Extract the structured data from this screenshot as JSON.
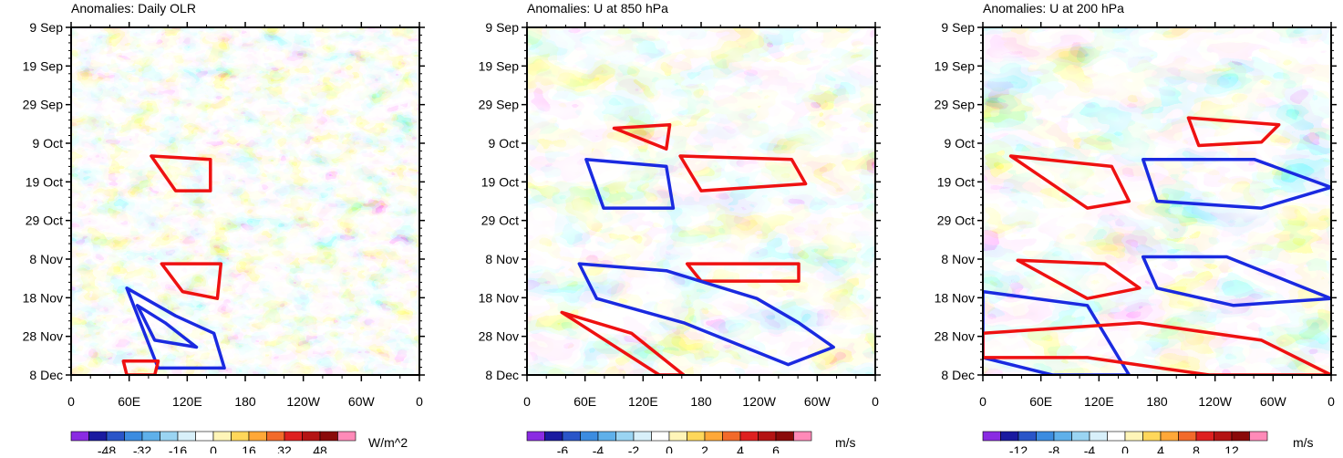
{
  "chart_data": [
    {
      "type": "heatmap",
      "subtype": "hovmoller-contour",
      "title": "Anomalies: Daily OLR",
      "y_ticks": [
        "9 Sep",
        "19 Sep",
        "29 Sep",
        "9 Oct",
        "19 Oct",
        "29 Oct",
        "8 Nov",
        "18 Nov",
        "28 Nov",
        "8 Dec"
      ],
      "x_ticks": [
        "0",
        "60E",
        "120E",
        "180",
        "120W",
        "60W",
        "0"
      ],
      "x_range_deg": [
        0,
        360
      ],
      "colorbar_labels": [
        "-48",
        "-32",
        "-16",
        "0",
        "16",
        "32",
        "48"
      ],
      "units": "W/m^2",
      "contours": [
        {
          "color": "red",
          "x": [
            0.23,
            0.4,
            0.4,
            0.3,
            0.23
          ],
          "y": [
            0.37,
            0.38,
            0.47,
            0.47,
            0.37
          ]
        },
        {
          "color": "red",
          "x": [
            0.26,
            0.43,
            0.42,
            0.32,
            0.26
          ],
          "y": [
            0.68,
            0.68,
            0.78,
            0.76,
            0.68
          ]
        },
        {
          "color": "blue",
          "x": [
            0.16,
            0.3,
            0.41,
            0.44,
            0.25,
            0.16
          ],
          "y": [
            0.75,
            0.83,
            0.88,
            0.98,
            0.98,
            0.75
          ]
        },
        {
          "color": "blue",
          "x": [
            0.19,
            0.27,
            0.36,
            0.24,
            0.19
          ],
          "y": [
            0.8,
            0.85,
            0.92,
            0.9,
            0.8
          ]
        },
        {
          "color": "red",
          "x": [
            0.15,
            0.25,
            0.24,
            0.16
          ],
          "y": [
            0.96,
            0.96,
            1.0,
            1.0
          ]
        }
      ]
    },
    {
      "type": "heatmap",
      "subtype": "hovmoller-contour",
      "title": "Anomalies: U at 850 hPa",
      "y_ticks": [
        "9 Sep",
        "19 Sep",
        "29 Sep",
        "9 Oct",
        "19 Oct",
        "29 Oct",
        "8 Nov",
        "18 Nov",
        "28 Nov",
        "8 Dec"
      ],
      "x_ticks": [
        "0",
        "60E",
        "120E",
        "180",
        "120W",
        "60W",
        "0"
      ],
      "x_range_deg": [
        0,
        360
      ],
      "colorbar_labels": [
        "-6",
        "-4",
        "-2",
        "0",
        "2",
        "4",
        "6"
      ],
      "units": "m/s",
      "contours": [
        {
          "color": "red",
          "x": [
            0.25,
            0.41,
            0.4,
            0.25
          ],
          "y": [
            0.29,
            0.28,
            0.35,
            0.29
          ]
        },
        {
          "color": "red",
          "x": [
            0.44,
            0.76,
            0.8,
            0.5,
            0.44
          ],
          "y": [
            0.37,
            0.38,
            0.45,
            0.47,
            0.37
          ]
        },
        {
          "color": "blue",
          "x": [
            0.17,
            0.4,
            0.42,
            0.22,
            0.17
          ],
          "y": [
            0.38,
            0.4,
            0.52,
            0.52,
            0.38
          ]
        },
        {
          "color": "red",
          "x": [
            0.46,
            0.78,
            0.78,
            0.5,
            0.46
          ],
          "y": [
            0.68,
            0.68,
            0.73,
            0.73,
            0.68
          ]
        },
        {
          "color": "blue",
          "x": [
            0.15,
            0.4,
            0.66,
            0.78,
            0.88,
            0.75,
            0.45,
            0.2,
            0.15
          ],
          "y": [
            0.68,
            0.7,
            0.78,
            0.85,
            0.92,
            0.97,
            0.85,
            0.78,
            0.68
          ]
        },
        {
          "color": "red",
          "x": [
            0.1,
            0.3,
            0.45,
            0.38,
            0.1
          ],
          "y": [
            0.82,
            0.88,
            1.0,
            1.0,
            0.82
          ]
        }
      ]
    },
    {
      "type": "heatmap",
      "subtype": "hovmoller-contour",
      "title": "Anomalies: U at 200 hPa",
      "y_ticks": [
        "9 Sep",
        "19 Sep",
        "29 Sep",
        "9 Oct",
        "19 Oct",
        "29 Oct",
        "8 Nov",
        "18 Nov",
        "28 Nov",
        "8 Dec"
      ],
      "x_ticks": [
        "0",
        "60E",
        "120E",
        "180",
        "120W",
        "60W",
        "0"
      ],
      "x_range_deg": [
        0,
        360
      ],
      "colorbar_labels": [
        "-12",
        "-8",
        "-4",
        "0",
        "4",
        "8",
        "12"
      ],
      "units": "m/s",
      "contours": [
        {
          "color": "red",
          "x": [
            0.59,
            0.85,
            0.8,
            0.62,
            0.59
          ],
          "y": [
            0.26,
            0.28,
            0.33,
            0.34,
            0.26
          ]
        },
        {
          "color": "red",
          "x": [
            0.08,
            0.37,
            0.42,
            0.3,
            0.08
          ],
          "y": [
            0.37,
            0.4,
            0.5,
            0.52,
            0.37
          ]
        },
        {
          "color": "blue",
          "x": [
            0.46,
            0.78,
            1.0,
            0.8,
            0.5,
            0.46
          ],
          "y": [
            0.38,
            0.38,
            0.46,
            0.52,
            0.5,
            0.38
          ]
        },
        {
          "color": "red",
          "x": [
            0.1,
            0.35,
            0.45,
            0.3,
            0.1
          ],
          "y": [
            0.67,
            0.68,
            0.75,
            0.78,
            0.67
          ]
        },
        {
          "color": "blue",
          "x": [
            0.46,
            0.7,
            1.0,
            0.72,
            0.5,
            0.46
          ],
          "y": [
            0.66,
            0.66,
            0.78,
            0.8,
            0.75,
            0.66
          ]
        },
        {
          "color": "blue",
          "x": [
            0.0,
            0.3,
            0.42,
            0.2,
            0.0
          ],
          "y": [
            0.76,
            0.8,
            1.0,
            1.0,
            0.95
          ]
        },
        {
          "color": "red",
          "x": [
            0.0,
            0.45,
            0.8,
            1.0,
            0.65,
            0.3,
            0.0
          ],
          "y": [
            0.88,
            0.85,
            0.9,
            1.0,
            1.0,
            0.95,
            0.95
          ]
        }
      ]
    }
  ]
}
